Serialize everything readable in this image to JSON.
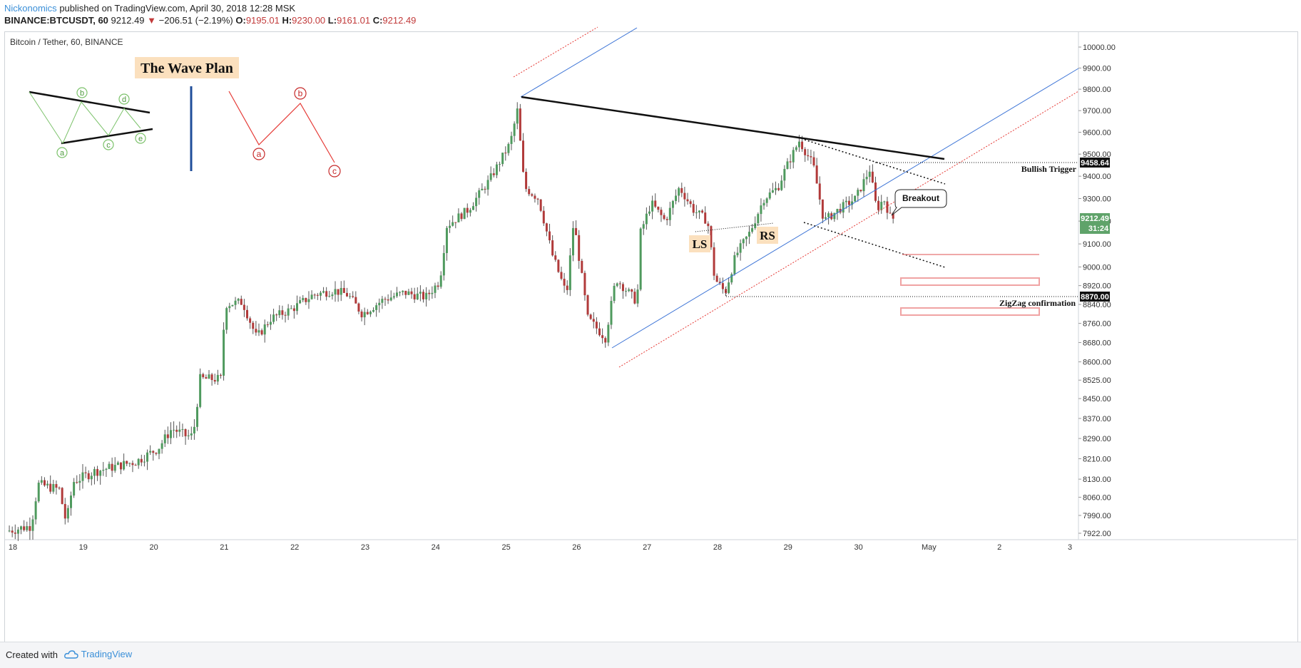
{
  "header": {
    "author": "Nickonomics",
    "published": "published on TradingView.com, April 30, 2018 12:28 MSK",
    "symbol_line": "BINANCE:BTCUSDT, 60",
    "last": "9212.49",
    "change_arrow": "▼",
    "change": "−206.51 (−2.19%)",
    "o_label": "O:",
    "o_value": "9195.01",
    "h_label": "H:",
    "h_value": "9230.00",
    "l_label": "L:",
    "l_value": "9161.01",
    "c_label": "C:",
    "c_value": "9212.49"
  },
  "chart_title": "Bitcoin / Tether, 60, BINANCE",
  "footer": {
    "created_with": "Created with",
    "brand": "TradingView"
  },
  "colors": {
    "up": "#4f9a5e",
    "down": "#b13a3a",
    "channel_blue": "#3b73d6",
    "channel_red_dotted": "#e53935",
    "wave_green": "#7cc26b",
    "wave_red": "#e53935",
    "label_bg": "#fbe0be",
    "price_badge_green": "#5fa36a",
    "target_box": "#f0a3a3"
  },
  "annotations": {
    "wave_plan": "The Wave Plan",
    "triangle_points": [
      "a",
      "b",
      "c",
      "d",
      "e"
    ],
    "zigzag_points": [
      "a",
      "b",
      "c"
    ],
    "ls": "LS",
    "rs": "RS",
    "breakout": "Breakout",
    "bullish_trigger": "Bullish Trigger",
    "zigzag_confirmation": "ZigZag confirmation",
    "bullish_trigger_price": "9458.64",
    "zigzag_price": "8870.00",
    "last_price": "9212.49",
    "countdown": "31:24"
  },
  "chart_data": {
    "type": "candlestick",
    "title": "Bitcoin / Tether, 60, BINANCE",
    "x_ticks": [
      "18",
      "19",
      "20",
      "21",
      "22",
      "23",
      "24",
      "25",
      "26",
      "27",
      "28",
      "29",
      "30",
      "May",
      "2",
      "3"
    ],
    "y_ticks": [
      "7922.00",
      "7990.00",
      "8060.00",
      "8130.00",
      "8210.00",
      "8290.00",
      "8370.00",
      "8450.00",
      "8525.00",
      "8600.00",
      "8680.00",
      "8760.00",
      "8840.00",
      "8920.00",
      "9000.00",
      "9100.00",
      "9200.00",
      "9300.00",
      "9400.00",
      "9500.00",
      "9600.00",
      "9700.00",
      "9800.00",
      "9900.00",
      "10000.00"
    ],
    "y_scale": "log",
    "ylim": [
      7900,
      10150
    ],
    "grid": false,
    "price_path": [
      [
        17.95,
        7930
      ],
      [
        18.3,
        7950
      ],
      [
        18.4,
        8110
      ],
      [
        18.7,
        8090
      ],
      [
        18.8,
        7960
      ],
      [
        18.9,
        8120
      ],
      [
        19.2,
        8160
      ],
      [
        19.5,
        8180
      ],
      [
        19.8,
        8200
      ],
      [
        20.1,
        8250
      ],
      [
        20.3,
        8330
      ],
      [
        20.5,
        8300
      ],
      [
        20.6,
        8300
      ],
      [
        20.7,
        8530
      ],
      [
        21.0,
        8530
      ],
      [
        21.05,
        8840
      ],
      [
        21.3,
        8850
      ],
      [
        21.5,
        8700
      ],
      [
        21.7,
        8780
      ],
      [
        22.0,
        8820
      ],
      [
        22.3,
        8880
      ],
      [
        22.6,
        8900
      ],
      [
        22.8,
        8880
      ],
      [
        23.0,
        8800
      ],
      [
        23.3,
        8860
      ],
      [
        23.6,
        8890
      ],
      [
        23.9,
        8870
      ],
      [
        24.1,
        8940
      ],
      [
        24.2,
        9180
      ],
      [
        24.5,
        9250
      ],
      [
        24.8,
        9380
      ],
      [
        25.1,
        9550
      ],
      [
        25.2,
        9700
      ],
      [
        25.3,
        9350
      ],
      [
        25.5,
        9300
      ],
      [
        25.7,
        9050
      ],
      [
        25.9,
        8880
      ],
      [
        26.0,
        9200
      ],
      [
        26.2,
        8780
      ],
      [
        26.45,
        8700
      ],
      [
        26.6,
        8950
      ],
      [
        26.9,
        8850
      ],
      [
        26.95,
        9150
      ],
      [
        27.1,
        9280
      ],
      [
        27.3,
        9200
      ],
      [
        27.5,
        9350
      ],
      [
        27.7,
        9250
      ],
      [
        27.9,
        9200
      ],
      [
        28.0,
        8950
      ],
      [
        28.15,
        8890
      ],
      [
        28.3,
        9050
      ],
      [
        28.5,
        9150
      ],
      [
        28.7,
        9300
      ],
      [
        28.9,
        9350
      ],
      [
        29.0,
        9430
      ],
      [
        29.2,
        9560
      ],
      [
        29.4,
        9450
      ],
      [
        29.55,
        9200
      ],
      [
        29.8,
        9260
      ],
      [
        30.0,
        9300
      ],
      [
        30.2,
        9430
      ],
      [
        30.3,
        9250
      ],
      [
        30.4,
        9300
      ],
      [
        30.5,
        9212
      ]
    ],
    "levels": {
      "bullish_trigger": 9458.64,
      "zigzag_confirmation": 8870.0,
      "last": 9212.49
    }
  }
}
